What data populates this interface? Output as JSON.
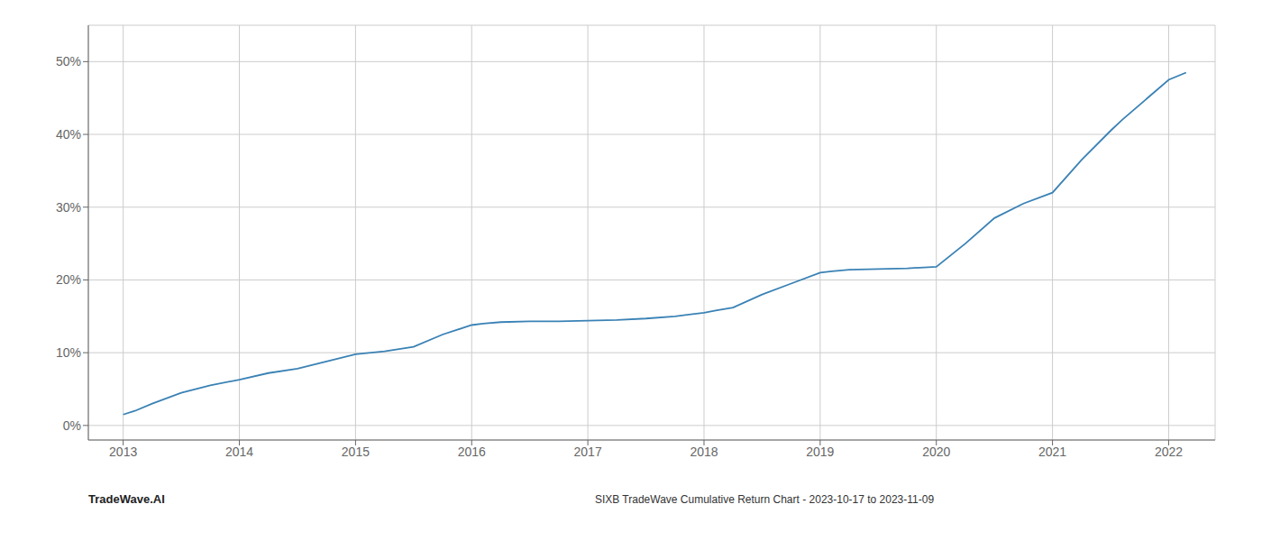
{
  "chart_data": {
    "type": "line",
    "title": "SIXB TradeWave Cumulative Return Chart - 2023-10-17 to 2023-11-09",
    "annotations": [
      "TradeWave.AI"
    ],
    "x": [
      2013.0,
      2013.1,
      2013.25,
      2013.5,
      2013.75,
      2014.0,
      2014.25,
      2014.5,
      2014.75,
      2015.0,
      2015.25,
      2015.5,
      2015.75,
      2016.0,
      2016.1,
      2016.25,
      2016.5,
      2016.75,
      2017.0,
      2017.25,
      2017.5,
      2017.75,
      2018.0,
      2018.1,
      2018.25,
      2018.5,
      2018.75,
      2019.0,
      2019.1,
      2019.25,
      2019.5,
      2019.75,
      2020.0,
      2020.25,
      2020.5,
      2020.75,
      2021.0,
      2021.25,
      2021.5,
      2021.6,
      2022.0,
      2022.15
    ],
    "values": [
      1.5,
      2.0,
      3.0,
      4.5,
      5.5,
      6.3,
      7.2,
      7.8,
      8.8,
      9.8,
      10.2,
      10.8,
      12.5,
      13.8,
      14.0,
      14.2,
      14.3,
      14.3,
      14.4,
      14.5,
      14.7,
      15.0,
      15.5,
      15.8,
      16.2,
      18.0,
      19.5,
      21.0,
      21.2,
      21.4,
      21.5,
      21.6,
      21.8,
      25.0,
      28.5,
      30.5,
      32.0,
      36.5,
      40.5,
      42.0,
      47.5,
      48.5
    ],
    "color": "#3a82b5",
    "xlim": [
      2012.7,
      2022.4
    ],
    "ylim": [
      -2,
      55
    ],
    "xticks": [
      2013,
      2014,
      2015,
      2016,
      2017,
      2018,
      2019,
      2020,
      2021,
      2022
    ],
    "yticks": [
      {
        "value": 0,
        "label": "0%"
      },
      {
        "value": 10,
        "label": "10%"
      },
      {
        "value": 20,
        "label": "20%"
      },
      {
        "value": 30,
        "label": "30%"
      },
      {
        "value": 40,
        "label": "40%"
      },
      {
        "value": 50,
        "label": "50%"
      }
    ],
    "grid": true
  }
}
